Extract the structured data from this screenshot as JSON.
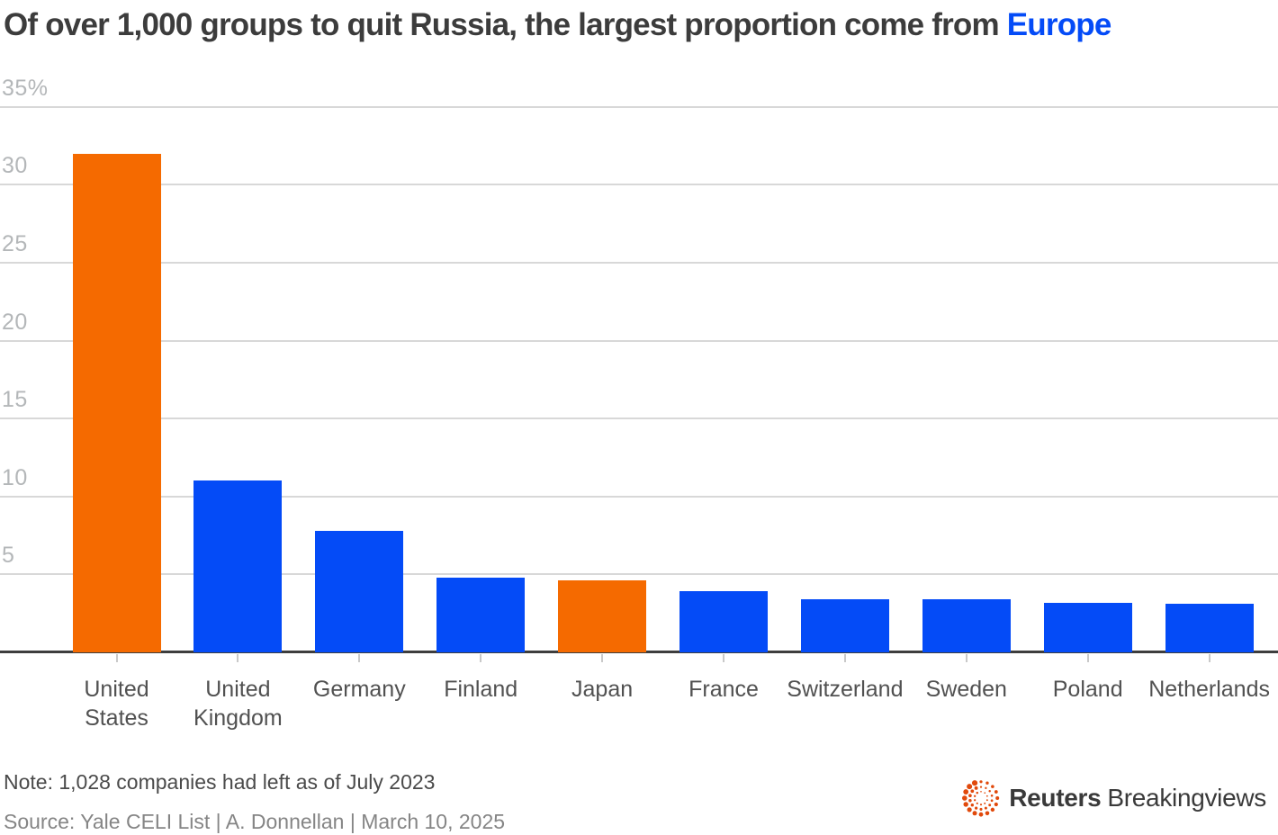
{
  "colors": {
    "blue": "#044bf7",
    "orange": "#f56a00",
    "title_text": "#3c3c3c",
    "logo_orange": "#e1490b"
  },
  "title": {
    "main": "Of over 1,000 groups to quit Russia, the largest proportion come from",
    "highlight": "Europe"
  },
  "chart_data": {
    "type": "bar",
    "title": "Of over 1,000 groups to quit Russia, the largest proportion come from Europe",
    "categories": [
      "United States",
      "United Kingdom",
      "Germany",
      "Finland",
      "Japan",
      "France",
      "Switzerland",
      "Sweden",
      "Poland",
      "Netherlands"
    ],
    "values": [
      32,
      11,
      7.8,
      4.8,
      4.6,
      3.9,
      3.4,
      3.4,
      3.2,
      3.1
    ],
    "unit": "%",
    "bar_colors": [
      "orange",
      "blue",
      "blue",
      "blue",
      "orange",
      "blue",
      "blue",
      "blue",
      "blue",
      "blue"
    ],
    "x_tick_display": [
      "United\nStates",
      "United\nKingdom",
      "Germany",
      "Finland",
      "Japan",
      "France",
      "Switzerland",
      "Sweden",
      "Poland",
      "Netherlands"
    ],
    "y_ticks": [
      5,
      10,
      15,
      20,
      25,
      30,
      35
    ],
    "y_tick_labels": [
      "5",
      "10",
      "15",
      "20",
      "25",
      "30",
      "35%"
    ],
    "ylim": [
      0,
      35
    ],
    "grid": true,
    "legend": false
  },
  "footer": {
    "note": "Note: 1,028 companies had left as of July 2023",
    "source": "Source: Yale CELI List | A. Donnellan | March 10, 2025",
    "brand_bold": "Reuters",
    "brand_regular": "Breakingviews"
  }
}
